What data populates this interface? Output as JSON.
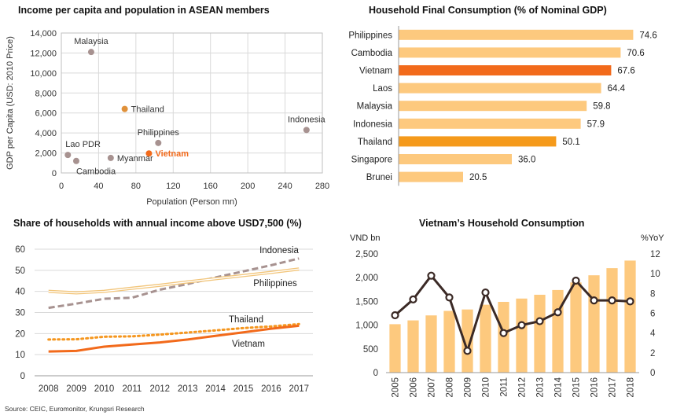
{
  "source": "Source: CEIC, Euromonitor, Krungsri Research",
  "chart_data": [
    {
      "type": "scatter",
      "title": "Income per capita and population in ASEAN members",
      "xlabel": "Population (Person mn)",
      "ylabel": "GDP per Capita (USD: 2010 Price)",
      "xlim": [
        0,
        280
      ],
      "ylim": [
        0,
        14000
      ],
      "xticks": [
        0,
        40,
        80,
        120,
        160,
        200,
        240,
        280
      ],
      "yticks": [
        0,
        2000,
        4000,
        6000,
        8000,
        10000,
        12000,
        14000
      ],
      "xtick_labels": [
        "0",
        "40",
        "80",
        "120",
        "160",
        "200",
        "240",
        "280"
      ],
      "ytick_labels": [
        "0",
        "2,000",
        "4,000",
        "6,000",
        "8,000",
        "10,000",
        "12,000",
        "14,000"
      ],
      "grid": true,
      "points": [
        {
          "label": "Malaysia",
          "x": 32,
          "y": 12100,
          "color": "#a79290",
          "highlight": false,
          "label_pos": "above"
        },
        {
          "label": "Thailand",
          "x": 68,
          "y": 6400,
          "color": "#e0913a",
          "highlight": false,
          "label_pos": "right"
        },
        {
          "label": "Philippines",
          "x": 104,
          "y": 3000,
          "color": "#a79290",
          "highlight": false,
          "label_pos": "above"
        },
        {
          "label": "Indonesia",
          "x": 263,
          "y": 4300,
          "color": "#a79290",
          "highlight": false,
          "label_pos": "above"
        },
        {
          "label": "Vietnam",
          "x": 94,
          "y": 1950,
          "color": "#f26a1b",
          "highlight": true,
          "label_pos": "right"
        },
        {
          "label": "Lao PDR",
          "x": 7,
          "y": 1800,
          "color": "#a79290",
          "highlight": false,
          "label_pos": "above-right"
        },
        {
          "label": "Cambodia",
          "x": 16,
          "y": 1200,
          "color": "#a79290",
          "highlight": false,
          "label_pos": "below-right"
        },
        {
          "label": "Myanmar",
          "x": 53,
          "y": 1500,
          "color": "#a79290",
          "highlight": false,
          "label_pos": "right"
        }
      ]
    },
    {
      "type": "bar",
      "orientation": "horizontal",
      "title": "Household Final Consumption (% of Nominal GDP)",
      "xlim": [
        0,
        80
      ],
      "categories": [
        "Philippines",
        "Cambodia",
        "Vietnam",
        "Laos",
        "Malaysia",
        "Indonesia",
        "Thailand",
        "Singapore",
        "Brunei"
      ],
      "values": [
        74.6,
        70.6,
        67.6,
        64.4,
        59.8,
        57.9,
        50.1,
        36.0,
        20.5
      ],
      "value_labels": [
        "74.6",
        "70.6",
        "67.6",
        "64.4",
        "59.8",
        "57.9",
        "50.1",
        "36.0",
        "20.5"
      ],
      "colors": [
        "#fdc97e",
        "#fdc97e",
        "#f26a1b",
        "#fdc97e",
        "#fdc97e",
        "#fdc97e",
        "#f59a1b",
        "#fdc97e",
        "#fdc97e"
      ],
      "grid": false
    },
    {
      "type": "line",
      "title": "Share of households with annual income above USD7,500 (%)",
      "x": [
        "2008",
        "2009",
        "2010",
        "2011",
        "2012",
        "2013",
        "2014",
        "2015",
        "2016",
        "2017"
      ],
      "ylim": [
        0,
        60
      ],
      "yticks": [
        0,
        10,
        20,
        30,
        40,
        50,
        60
      ],
      "ytick_labels": [
        "0",
        "10",
        "20",
        "30",
        "40",
        "50",
        "60"
      ],
      "grid": true,
      "series": [
        {
          "name": "Indonesia",
          "values": [
            32.2,
            34.2,
            36.5,
            37.0,
            40.8,
            43.5,
            46.6,
            49.5,
            52.4,
            55.6
          ],
          "color": "#a79290",
          "style": "dashed"
        },
        {
          "name": "Philippines",
          "values": [
            40.0,
            39.3,
            40.0,
            41.5,
            42.9,
            44.5,
            46.0,
            47.5,
            49.0,
            50.6
          ],
          "color": "#f2c57a",
          "style": "double"
        },
        {
          "name": "Thailand",
          "values": [
            17.2,
            17.3,
            18.5,
            18.7,
            19.5,
            20.5,
            21.5,
            22.6,
            23.4,
            24.5
          ],
          "color": "#f5961e",
          "style": "dotted"
        },
        {
          "name": "Vietnam",
          "values": [
            11.5,
            11.8,
            13.8,
            14.8,
            15.8,
            17.2,
            18.9,
            20.6,
            22.3,
            23.7
          ],
          "color": "#f26a1b",
          "style": "solid"
        }
      ]
    },
    {
      "type": "bar+line",
      "title": "Vietnam’s Household Consumption",
      "y_left_label": "VND bn",
      "y_right_label": "%YoY",
      "categories": [
        "2005",
        "2006",
        "2007",
        "2008",
        "2009",
        "2010",
        "2011",
        "2012",
        "2013",
        "2014",
        "2015",
        "2016",
        "2017",
        "2018"
      ],
      "ylim_left": [
        0,
        2500
      ],
      "ylim_right": [
        0,
        12
      ],
      "yticks_left": [
        0,
        500,
        1000,
        1500,
        2000,
        2500
      ],
      "ytick_labels_left": [
        "0",
        "500",
        "1,000",
        "1,500",
        "2,000",
        "2,500"
      ],
      "yticks_right": [
        0,
        2,
        4,
        6,
        8,
        10,
        12
      ],
      "ytick_labels_right": [
        "0",
        "2",
        "4",
        "6",
        "8",
        "10",
        "12"
      ],
      "grid": false,
      "series": [
        {
          "kind": "bar",
          "axis": "left",
          "color": "#fdc97e",
          "values": [
            1020,
            1100,
            1205,
            1300,
            1330,
            1430,
            1490,
            1560,
            1640,
            1740,
            1900,
            2050,
            2200,
            2360
          ]
        },
        {
          "kind": "line",
          "axis": "right",
          "color": "#3b2a26",
          "values": [
            5.8,
            7.4,
            9.8,
            7.6,
            2.2,
            8.1,
            4.0,
            4.8,
            5.2,
            6.1,
            9.3,
            7.3,
            7.3,
            7.2
          ]
        }
      ]
    }
  ]
}
